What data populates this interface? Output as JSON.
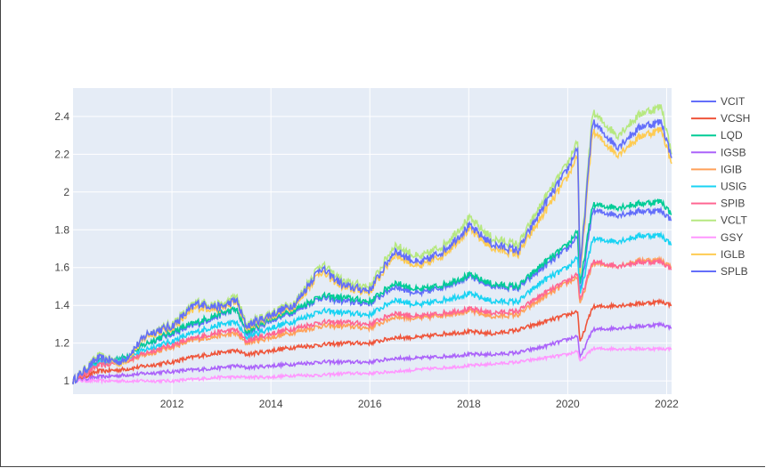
{
  "chart_data": {
    "type": "line",
    "title": "",
    "xlabel": "",
    "ylabel": "",
    "xlim": [
      2010.0,
      2022.1
    ],
    "ylim": [
      0.93,
      2.55
    ],
    "x_ticks": [
      2012,
      2014,
      2016,
      2018,
      2020,
      2022
    ],
    "x_tick_labels": [
      "2012",
      "2014",
      "2016",
      "2018",
      "2020",
      "2022"
    ],
    "y_ticks": [
      1,
      1.2,
      1.4,
      1.6,
      1.8,
      2,
      2.2,
      2.4
    ],
    "y_tick_labels": [
      "1",
      "1.2",
      "1.4",
      "1.6",
      "1.8",
      "2",
      "2.2",
      "2.4"
    ],
    "grid": true,
    "background": "#E5ECF6",
    "legend_position": "right",
    "x": [
      2010.0,
      2010.5,
      2011.0,
      2011.5,
      2012.0,
      2012.5,
      2013.0,
      2013.3,
      2013.5,
      2014.0,
      2014.5,
      2015.0,
      2015.5,
      2016.0,
      2016.5,
      2017.0,
      2017.5,
      2018.0,
      2018.5,
      2019.0,
      2019.5,
      2020.0,
      2020.2,
      2020.25,
      2020.5,
      2021.0,
      2021.5,
      2021.9,
      2022.1
    ],
    "series": [
      {
        "name": "VCIT",
        "color": "#636EFA",
        "values": [
          1.0,
          1.1,
          1.12,
          1.2,
          1.25,
          1.3,
          1.35,
          1.38,
          1.25,
          1.32,
          1.37,
          1.44,
          1.42,
          1.41,
          1.5,
          1.46,
          1.5,
          1.55,
          1.5,
          1.49,
          1.6,
          1.7,
          1.77,
          1.45,
          1.9,
          1.88,
          1.9,
          1.9,
          1.85
        ]
      },
      {
        "name": "VCSH",
        "color": "#EF553B",
        "values": [
          1.0,
          1.05,
          1.06,
          1.08,
          1.1,
          1.13,
          1.15,
          1.16,
          1.14,
          1.16,
          1.18,
          1.19,
          1.2,
          1.2,
          1.23,
          1.23,
          1.25,
          1.26,
          1.25,
          1.27,
          1.31,
          1.35,
          1.37,
          1.2,
          1.39,
          1.4,
          1.41,
          1.42,
          1.4
        ]
      },
      {
        "name": "LQD",
        "color": "#00CC96",
        "values": [
          1.0,
          1.1,
          1.12,
          1.2,
          1.26,
          1.31,
          1.36,
          1.38,
          1.26,
          1.33,
          1.38,
          1.45,
          1.44,
          1.42,
          1.52,
          1.48,
          1.51,
          1.56,
          1.51,
          1.5,
          1.62,
          1.72,
          1.8,
          1.5,
          1.93,
          1.92,
          1.94,
          1.95,
          1.88
        ]
      },
      {
        "name": "IGSB",
        "color": "#AB63FA",
        "values": [
          1.0,
          1.02,
          1.03,
          1.04,
          1.05,
          1.06,
          1.07,
          1.08,
          1.07,
          1.08,
          1.09,
          1.1,
          1.1,
          1.1,
          1.12,
          1.12,
          1.13,
          1.14,
          1.14,
          1.15,
          1.18,
          1.22,
          1.24,
          1.12,
          1.27,
          1.28,
          1.29,
          1.3,
          1.28
        ]
      },
      {
        "name": "IGIB",
        "color": "#FFA15A",
        "values": [
          1.0,
          1.08,
          1.1,
          1.14,
          1.18,
          1.22,
          1.24,
          1.25,
          1.2,
          1.23,
          1.26,
          1.29,
          1.29,
          1.28,
          1.34,
          1.33,
          1.35,
          1.37,
          1.34,
          1.35,
          1.44,
          1.52,
          1.55,
          1.4,
          1.62,
          1.61,
          1.64,
          1.64,
          1.6
        ]
      },
      {
        "name": "USIG",
        "color": "#19D3F3",
        "values": [
          1.0,
          1.09,
          1.11,
          1.17,
          1.21,
          1.26,
          1.3,
          1.31,
          1.23,
          1.28,
          1.32,
          1.37,
          1.36,
          1.35,
          1.43,
          1.4,
          1.43,
          1.46,
          1.42,
          1.42,
          1.53,
          1.6,
          1.66,
          1.45,
          1.75,
          1.74,
          1.77,
          1.77,
          1.72
        ]
      },
      {
        "name": "SPIB",
        "color": "#FF6692",
        "values": [
          1.0,
          1.08,
          1.1,
          1.15,
          1.19,
          1.23,
          1.26,
          1.27,
          1.21,
          1.25,
          1.28,
          1.31,
          1.31,
          1.3,
          1.36,
          1.34,
          1.36,
          1.38,
          1.36,
          1.37,
          1.46,
          1.53,
          1.57,
          1.42,
          1.63,
          1.61,
          1.63,
          1.63,
          1.59
        ]
      },
      {
        "name": "VCLT",
        "color": "#B6E880",
        "values": [
          1.0,
          1.13,
          1.1,
          1.25,
          1.3,
          1.42,
          1.4,
          1.45,
          1.3,
          1.36,
          1.42,
          1.62,
          1.52,
          1.5,
          1.72,
          1.65,
          1.72,
          1.86,
          1.75,
          1.72,
          1.95,
          2.15,
          2.28,
          1.6,
          2.42,
          2.3,
          2.42,
          2.45,
          2.2
        ]
      },
      {
        "name": "GSY",
        "color": "#FF97FF",
        "values": [
          1.0,
          1.0,
          1.0,
          1.0,
          1.0,
          1.01,
          1.02,
          1.02,
          1.02,
          1.02,
          1.03,
          1.03,
          1.04,
          1.04,
          1.05,
          1.06,
          1.07,
          1.08,
          1.09,
          1.1,
          1.12,
          1.14,
          1.16,
          1.1,
          1.17,
          1.17,
          1.17,
          1.17,
          1.17
        ]
      },
      {
        "name": "IGLB",
        "color": "#FECB52",
        "values": [
          1.0,
          1.12,
          1.09,
          1.24,
          1.28,
          1.39,
          1.38,
          1.42,
          1.28,
          1.34,
          1.4,
          1.58,
          1.49,
          1.47,
          1.67,
          1.6,
          1.67,
          1.8,
          1.7,
          1.67,
          1.88,
          2.08,
          2.2,
          1.55,
          2.32,
          2.2,
          2.3,
          2.33,
          2.15
        ]
      },
      {
        "name": "SPLB",
        "color": "#636EFA",
        "values": [
          1.0,
          1.12,
          1.1,
          1.25,
          1.29,
          1.41,
          1.39,
          1.43,
          1.29,
          1.35,
          1.41,
          1.6,
          1.5,
          1.48,
          1.69,
          1.62,
          1.69,
          1.82,
          1.72,
          1.69,
          1.92,
          2.12,
          2.24,
          1.58,
          2.37,
          2.24,
          2.35,
          2.37,
          2.18
        ]
      }
    ]
  }
}
